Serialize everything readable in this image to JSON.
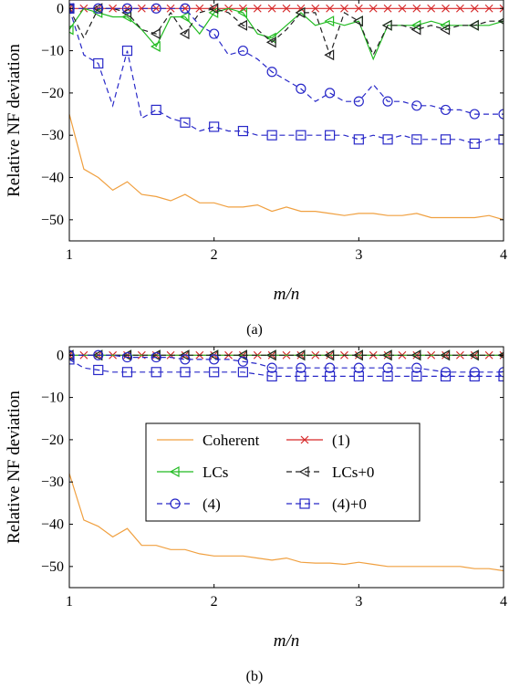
{
  "chart_data": [
    {
      "type": "line",
      "caption": "(a)",
      "xlabel": "m/n",
      "ylabel": "Relative NF deviation",
      "xlim": [
        1,
        4
      ],
      "ylim": [
        -55,
        2
      ],
      "xticks": [
        1,
        2,
        3,
        4
      ],
      "yticks": [
        0,
        -10,
        -20,
        -30,
        -40,
        -50
      ],
      "grid": false,
      "legend": "none",
      "series": [
        {
          "key": "coherent",
          "color": "#f0a040",
          "marker": "none",
          "dash": "solid",
          "x": [
            1,
            1.1,
            1.2,
            1.3,
            1.4,
            1.5,
            1.6,
            1.7,
            1.8,
            1.9,
            2.0,
            2.1,
            2.2,
            2.3,
            2.4,
            2.5,
            2.6,
            2.7,
            2.8,
            2.9,
            3.0,
            3.1,
            3.2,
            3.3,
            3.4,
            3.5,
            3.6,
            3.7,
            3.8,
            3.9,
            4.0
          ],
          "y": [
            -25,
            -38,
            -40,
            -43,
            -41,
            -44,
            -44.5,
            -45.5,
            -44,
            -46,
            -46,
            -47,
            -47,
            -46.5,
            -48,
            -47,
            -48,
            -48,
            -48.5,
            -49,
            -48.5,
            -48.5,
            -49,
            -49,
            -48.5,
            -49.5,
            -49.5,
            -49.5,
            -49.5,
            -49,
            -50
          ]
        },
        {
          "key": "eq1",
          "color": "#d62728",
          "marker": "x",
          "dash": "solid",
          "x": [
            1,
            1.1,
            1.2,
            1.3,
            1.4,
            1.5,
            1.6,
            1.7,
            1.8,
            1.9,
            2.0,
            2.1,
            2.2,
            2.3,
            2.4,
            2.5,
            2.6,
            2.7,
            2.8,
            2.9,
            3.0,
            3.1,
            3.2,
            3.3,
            3.4,
            3.5,
            3.6,
            3.7,
            3.8,
            3.9,
            4.0
          ],
          "y": [
            0,
            0,
            0,
            0,
            0,
            0,
            0,
            0,
            0,
            0,
            0,
            0,
            0,
            0,
            0,
            0,
            0,
            0,
            0,
            0,
            0,
            0,
            0,
            0,
            0,
            0,
            0,
            0,
            0,
            0,
            0
          ]
        },
        {
          "key": "lcs",
          "color": "#22bb22",
          "marker": "tri",
          "dash": "solid",
          "x": [
            1,
            1.1,
            1.2,
            1.3,
            1.4,
            1.5,
            1.6,
            1.7,
            1.8,
            1.9,
            2.0,
            2.1,
            2.2,
            2.3,
            2.4,
            2.5,
            2.6,
            2.7,
            2.8,
            2.9,
            3.0,
            3.1,
            3.2,
            3.3,
            3.4,
            3.5,
            3.6,
            3.7,
            3.8,
            3.9,
            4.0
          ],
          "y": [
            -5,
            0,
            -1,
            -2,
            -2,
            -5,
            -9,
            -2,
            -2,
            -6,
            -1,
            0,
            -1,
            -6,
            -7,
            -4,
            -1,
            -4,
            -3,
            -4,
            -3,
            -12,
            -4,
            -4,
            -4,
            -3,
            -4,
            -4,
            -4,
            -4,
            -3
          ],
          "marker_step": 2
        },
        {
          "key": "lcs0",
          "color": "#222222",
          "marker": "tri",
          "dash": "dash",
          "x": [
            1,
            1.1,
            1.2,
            1.3,
            1.4,
            1.5,
            1.6,
            1.7,
            1.8,
            1.9,
            2.0,
            2.1,
            2.2,
            2.3,
            2.4,
            2.5,
            2.6,
            2.7,
            2.8,
            2.9,
            3.0,
            3.1,
            3.2,
            3.3,
            3.4,
            3.5,
            3.6,
            3.7,
            3.8,
            3.9,
            4.0
          ],
          "y": [
            0,
            -7,
            0,
            0,
            -1,
            -5,
            -6,
            -1,
            -6,
            -1,
            0,
            -1,
            -4,
            -5,
            -8,
            -5,
            -1,
            -1,
            -11,
            -1,
            -3,
            -11,
            -4,
            -4,
            -5,
            -4,
            -5,
            -4,
            -4,
            -3,
            -3
          ],
          "marker_step": 2
        },
        {
          "key": "eq4",
          "color": "#2828c8",
          "marker": "circle",
          "dash": "dash",
          "x": [
            1,
            1.1,
            1.2,
            1.3,
            1.4,
            1.5,
            1.6,
            1.7,
            1.8,
            1.9,
            2.0,
            2.1,
            2.2,
            2.3,
            2.4,
            2.5,
            2.6,
            2.7,
            2.8,
            2.9,
            3.0,
            3.1,
            3.2,
            3.3,
            3.4,
            3.5,
            3.6,
            3.7,
            3.8,
            3.9,
            4.0
          ],
          "y": [
            0,
            0,
            0,
            0,
            0,
            0,
            0,
            0,
            0,
            -4,
            -6,
            -11,
            -10,
            -12,
            -15,
            -17,
            -19,
            -22,
            -20,
            -22,
            -22,
            -18,
            -22,
            -22,
            -23,
            -23,
            -24,
            -24,
            -25,
            -25,
            -25
          ],
          "marker_step": 2
        },
        {
          "key": "eq4_0",
          "color": "#2828c8",
          "marker": "square",
          "dash": "dash",
          "x": [
            1,
            1.1,
            1.2,
            1.3,
            1.4,
            1.5,
            1.6,
            1.7,
            1.8,
            1.9,
            2.0,
            2.1,
            2.2,
            2.3,
            2.4,
            2.5,
            2.6,
            2.7,
            2.8,
            2.9,
            3.0,
            3.1,
            3.2,
            3.3,
            3.4,
            3.5,
            3.6,
            3.7,
            3.8,
            3.9,
            4.0
          ],
          "y": [
            0,
            -11,
            -13,
            -23,
            -10,
            -26,
            -24,
            -26,
            -27,
            -29,
            -28,
            -29,
            -29,
            -30,
            -30,
            -30,
            -30,
            -30,
            -30,
            -30,
            -31,
            -30,
            -31,
            -30,
            -31,
            -31,
            -31,
            -31,
            -32,
            -31,
            -31
          ],
          "marker_step": 2
        }
      ]
    },
    {
      "type": "line",
      "caption": "(b)",
      "xlabel": "m/n",
      "ylabel": "Relative NF deviation",
      "xlim": [
        1,
        4
      ],
      "ylim": [
        -55,
        2
      ],
      "xticks": [
        1,
        2,
        3,
        4
      ],
      "yticks": [
        0,
        -10,
        -20,
        -30,
        -40,
        -50
      ],
      "grid": false,
      "legend": "center",
      "legend_entries": [
        {
          "key": "coherent",
          "label": "Coherent"
        },
        {
          "key": "eq1",
          "label": "(1)"
        },
        {
          "key": "lcs",
          "label": "LCs"
        },
        {
          "key": "lcs0",
          "label": "LCs+0"
        },
        {
          "key": "eq4",
          "label": "(4)"
        },
        {
          "key": "eq4_0",
          "label": "(4)+0"
        }
      ],
      "series": [
        {
          "key": "coherent",
          "color": "#f0a040",
          "marker": "none",
          "dash": "solid",
          "x": [
            1,
            1.1,
            1.2,
            1.3,
            1.4,
            1.5,
            1.6,
            1.7,
            1.8,
            1.9,
            2.0,
            2.1,
            2.2,
            2.3,
            2.4,
            2.5,
            2.6,
            2.7,
            2.8,
            2.9,
            3.0,
            3.1,
            3.2,
            3.3,
            3.4,
            3.5,
            3.6,
            3.7,
            3.8,
            3.9,
            4.0
          ],
          "y": [
            -28,
            -39,
            -40.5,
            -43,
            -41,
            -45,
            -45,
            -46,
            -46,
            -47,
            -47.5,
            -47.5,
            -47.5,
            -48,
            -48.5,
            -48,
            -49,
            -49.2,
            -49.2,
            -49.5,
            -49,
            -49.5,
            -50,
            -50,
            -50,
            -50,
            -50,
            -50,
            -50.5,
            -50.5,
            -51
          ]
        },
        {
          "key": "eq1",
          "color": "#d62728",
          "marker": "x",
          "dash": "solid",
          "x": [
            1,
            1.1,
            1.2,
            1.3,
            1.4,
            1.5,
            1.6,
            1.7,
            1.8,
            1.9,
            2.0,
            2.1,
            2.2,
            2.3,
            2.4,
            2.5,
            2.6,
            2.7,
            2.8,
            2.9,
            3.0,
            3.1,
            3.2,
            3.3,
            3.4,
            3.5,
            3.6,
            3.7,
            3.8,
            3.9,
            4.0
          ],
          "y": [
            0,
            0,
            0,
            0,
            0,
            0,
            0,
            0,
            0,
            0,
            0,
            0,
            0,
            0,
            0,
            0,
            0,
            0,
            0,
            0,
            0,
            0,
            0,
            0,
            0,
            0,
            0,
            0,
            0,
            0,
            0
          ]
        },
        {
          "key": "lcs",
          "color": "#22bb22",
          "marker": "tri",
          "dash": "solid",
          "x": [
            1,
            1.1,
            1.2,
            1.3,
            1.4,
            1.5,
            1.6,
            1.7,
            1.8,
            1.9,
            2.0,
            2.1,
            2.2,
            2.3,
            2.4,
            2.5,
            2.6,
            2.7,
            2.8,
            2.9,
            3.0,
            3.1,
            3.2,
            3.3,
            3.4,
            3.5,
            3.6,
            3.7,
            3.8,
            3.9,
            4.0
          ],
          "y": [
            0,
            0,
            0,
            0,
            0,
            0,
            0,
            0,
            0,
            0,
            0,
            0,
            0,
            0,
            0,
            0,
            0,
            0,
            0,
            0,
            0,
            0,
            0,
            0,
            0,
            0,
            0,
            0,
            0,
            0,
            0
          ],
          "marker_step": 2
        },
        {
          "key": "lcs0",
          "color": "#222222",
          "marker": "tri",
          "dash": "dash",
          "x": [
            1,
            1.1,
            1.2,
            1.3,
            1.4,
            1.5,
            1.6,
            1.7,
            1.8,
            1.9,
            2.0,
            2.1,
            2.2,
            2.3,
            2.4,
            2.5,
            2.6,
            2.7,
            2.8,
            2.9,
            3.0,
            3.1,
            3.2,
            3.3,
            3.4,
            3.5,
            3.6,
            3.7,
            3.8,
            3.9,
            4.0
          ],
          "y": [
            0,
            0,
            0,
            0,
            0,
            0,
            0,
            0,
            0,
            0,
            0,
            0,
            0,
            0,
            0,
            0,
            0,
            0,
            0,
            0,
            0,
            0,
            0,
            0,
            0,
            0,
            0,
            0,
            0,
            0,
            0
          ],
          "marker_step": 2
        },
        {
          "key": "eq4",
          "color": "#2828c8",
          "marker": "circle",
          "dash": "dash",
          "x": [
            1,
            1.1,
            1.2,
            1.3,
            1.4,
            1.5,
            1.6,
            1.7,
            1.8,
            1.9,
            2.0,
            2.1,
            2.2,
            2.3,
            2.4,
            2.5,
            2.6,
            2.7,
            2.8,
            2.9,
            3.0,
            3.1,
            3.2,
            3.3,
            3.4,
            3.5,
            3.6,
            3.7,
            3.8,
            3.9,
            4.0
          ],
          "y": [
            0,
            0,
            0,
            0,
            -0.5,
            -0.5,
            -0.5,
            -0.5,
            -1,
            -1,
            -1,
            -1,
            -1.5,
            -2,
            -3,
            -3,
            -3,
            -3,
            -3,
            -3,
            -3,
            -3,
            -3,
            -3,
            -3,
            -3.5,
            -4,
            -4,
            -4,
            -4,
            -4
          ],
          "marker_step": 2
        },
        {
          "key": "eq4_0",
          "color": "#2828c8",
          "marker": "square",
          "dash": "dash",
          "x": [
            1,
            1.1,
            1.2,
            1.3,
            1.4,
            1.5,
            1.6,
            1.7,
            1.8,
            1.9,
            2.0,
            2.1,
            2.2,
            2.3,
            2.4,
            2.5,
            2.6,
            2.7,
            2.8,
            2.9,
            3.0,
            3.1,
            3.2,
            3.3,
            3.4,
            3.5,
            3.6,
            3.7,
            3.8,
            3.9,
            4.0
          ],
          "y": [
            -1,
            -3,
            -3.5,
            -4,
            -4,
            -4,
            -4,
            -4,
            -4,
            -4,
            -4,
            -4,
            -4,
            -4.5,
            -5,
            -5,
            -5,
            -5,
            -5,
            -5,
            -5,
            -5,
            -5,
            -5,
            -5,
            -5,
            -5,
            -5,
            -5,
            -5,
            -5
          ],
          "marker_step": 2
        }
      ]
    }
  ]
}
